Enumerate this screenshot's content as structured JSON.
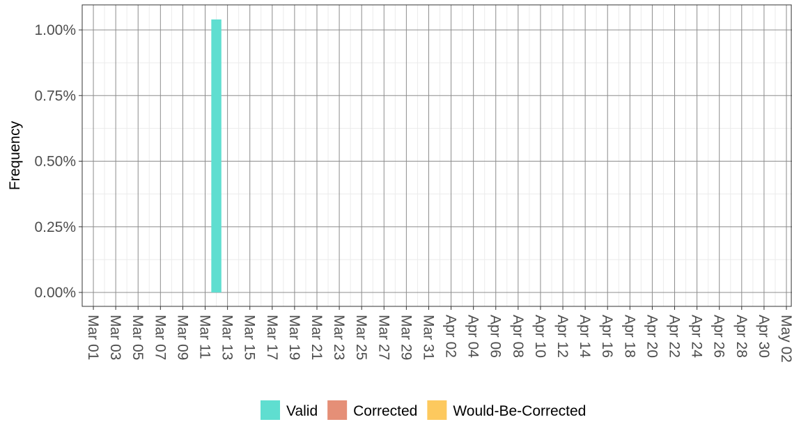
{
  "chart_data": {
    "type": "bar",
    "ylabel": "Frequency",
    "xlabel": "",
    "title": "",
    "x_start": "Mar 01",
    "x_end": "May 02",
    "x_tick_labels": [
      "Mar 01",
      "Mar 03",
      "Mar 05",
      "Mar 07",
      "Mar 09",
      "Mar 11",
      "Mar 13",
      "Mar 15",
      "Mar 17",
      "Mar 19",
      "Mar 21",
      "Mar 23",
      "Mar 25",
      "Mar 27",
      "Mar 29",
      "Mar 31",
      "Apr 02",
      "Apr 04",
      "Apr 06",
      "Apr 08",
      "Apr 10",
      "Apr 12",
      "Apr 14",
      "Apr 16",
      "Apr 18",
      "Apr 20",
      "Apr 22",
      "Apr 24",
      "Apr 26",
      "Apr 28",
      "Apr 30",
      "May 02"
    ],
    "y_tick_values": [
      0,
      0.25,
      0.5,
      0.75,
      1.0
    ],
    "y_tick_labels": [
      "0.00%",
      "0.25%",
      "0.50%",
      "0.75%",
      "1.00%"
    ],
    "ylim": [
      0,
      1.07
    ],
    "ylim_units": "percent",
    "grid": true,
    "legend_position": "bottom",
    "series": [
      {
        "name": "Valid",
        "color": "#5fded0",
        "points": [
          {
            "x": "Mar 12",
            "y": 1.04
          }
        ]
      },
      {
        "name": "Corrected",
        "color": "#e58f77",
        "points": []
      },
      {
        "name": "Would-Be-Corrected",
        "color": "#fdc95e",
        "points": []
      }
    ]
  }
}
